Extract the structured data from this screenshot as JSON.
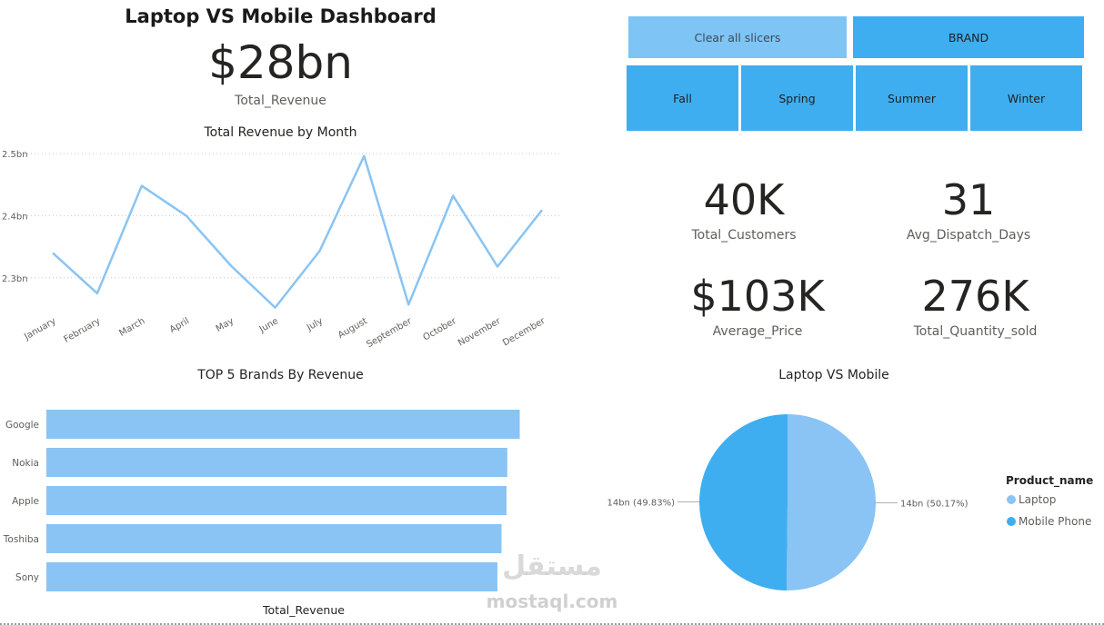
{
  "dashboard": {
    "title": "Laptop VS Mobile Dashboard"
  },
  "kpis": {
    "total_revenue": {
      "value": "$28bn",
      "label": "Total_Revenue"
    },
    "total_customers": {
      "value": "40K",
      "label": "Total_Customers"
    },
    "avg_dispatch_days": {
      "value": "31",
      "label": "Avg_Dispatch_Days"
    },
    "average_price": {
      "value": "$103K",
      "label": "Average_Price"
    },
    "total_quantity_sold": {
      "value": "276K",
      "label": "Total_Quantity_sold"
    }
  },
  "slicers": {
    "clear_label": "Clear all slicers",
    "brand_label": "BRAND",
    "seasons": [
      "Fall",
      "Spring",
      "Summer",
      "Winter"
    ]
  },
  "colors": {
    "light_blue": "#89c4f4",
    "blue": "#3eaef0",
    "clear_btn": "#7ec4f4",
    "line": "#89c4f4"
  },
  "watermark": {
    "text": "mostaql.com"
  },
  "chart_data": [
    {
      "type": "line",
      "title": "Total Revenue by Month",
      "categories": [
        "January",
        "February",
        "March",
        "April",
        "May",
        "June",
        "July",
        "August",
        "September",
        "October",
        "November",
        "December"
      ],
      "series": [
        {
          "values": [
            2.34,
            2.275,
            2.448,
            2.4,
            2.32,
            2.252,
            2.343,
            2.496,
            2.257,
            2.432,
            2.318,
            2.409
          ]
        }
      ],
      "ylim": [
        2.25,
        2.5
      ],
      "yticks": [
        2.3,
        2.4,
        2.5
      ],
      "ytick_labels": [
        "2.3bn",
        "2.4bn",
        "2.5bn"
      ],
      "grid": true
    },
    {
      "type": "bar",
      "orientation": "horizontal",
      "title": "TOP 5 Brands By Revenue",
      "categories": [
        "Google",
        "Nokia",
        "Apple",
        "Toshiba",
        "Sony"
      ],
      "values": [
        5.72,
        5.57,
        5.56,
        5.5,
        5.45
      ],
      "xlabel": "Total_Revenue",
      "xlim": [
        0,
        6.0
      ]
    },
    {
      "type": "pie",
      "title": "Laptop VS Mobile",
      "legend_title": "Product_name",
      "legend_position": "right",
      "slices": [
        {
          "name": "Laptop",
          "value": 50.17,
          "label": "14bn (50.17%)",
          "color": "#89c4f4"
        },
        {
          "name": "Mobile Phone",
          "value": 49.83,
          "label": "14bn (49.83%)",
          "color": "#3eaef0"
        }
      ]
    }
  ]
}
